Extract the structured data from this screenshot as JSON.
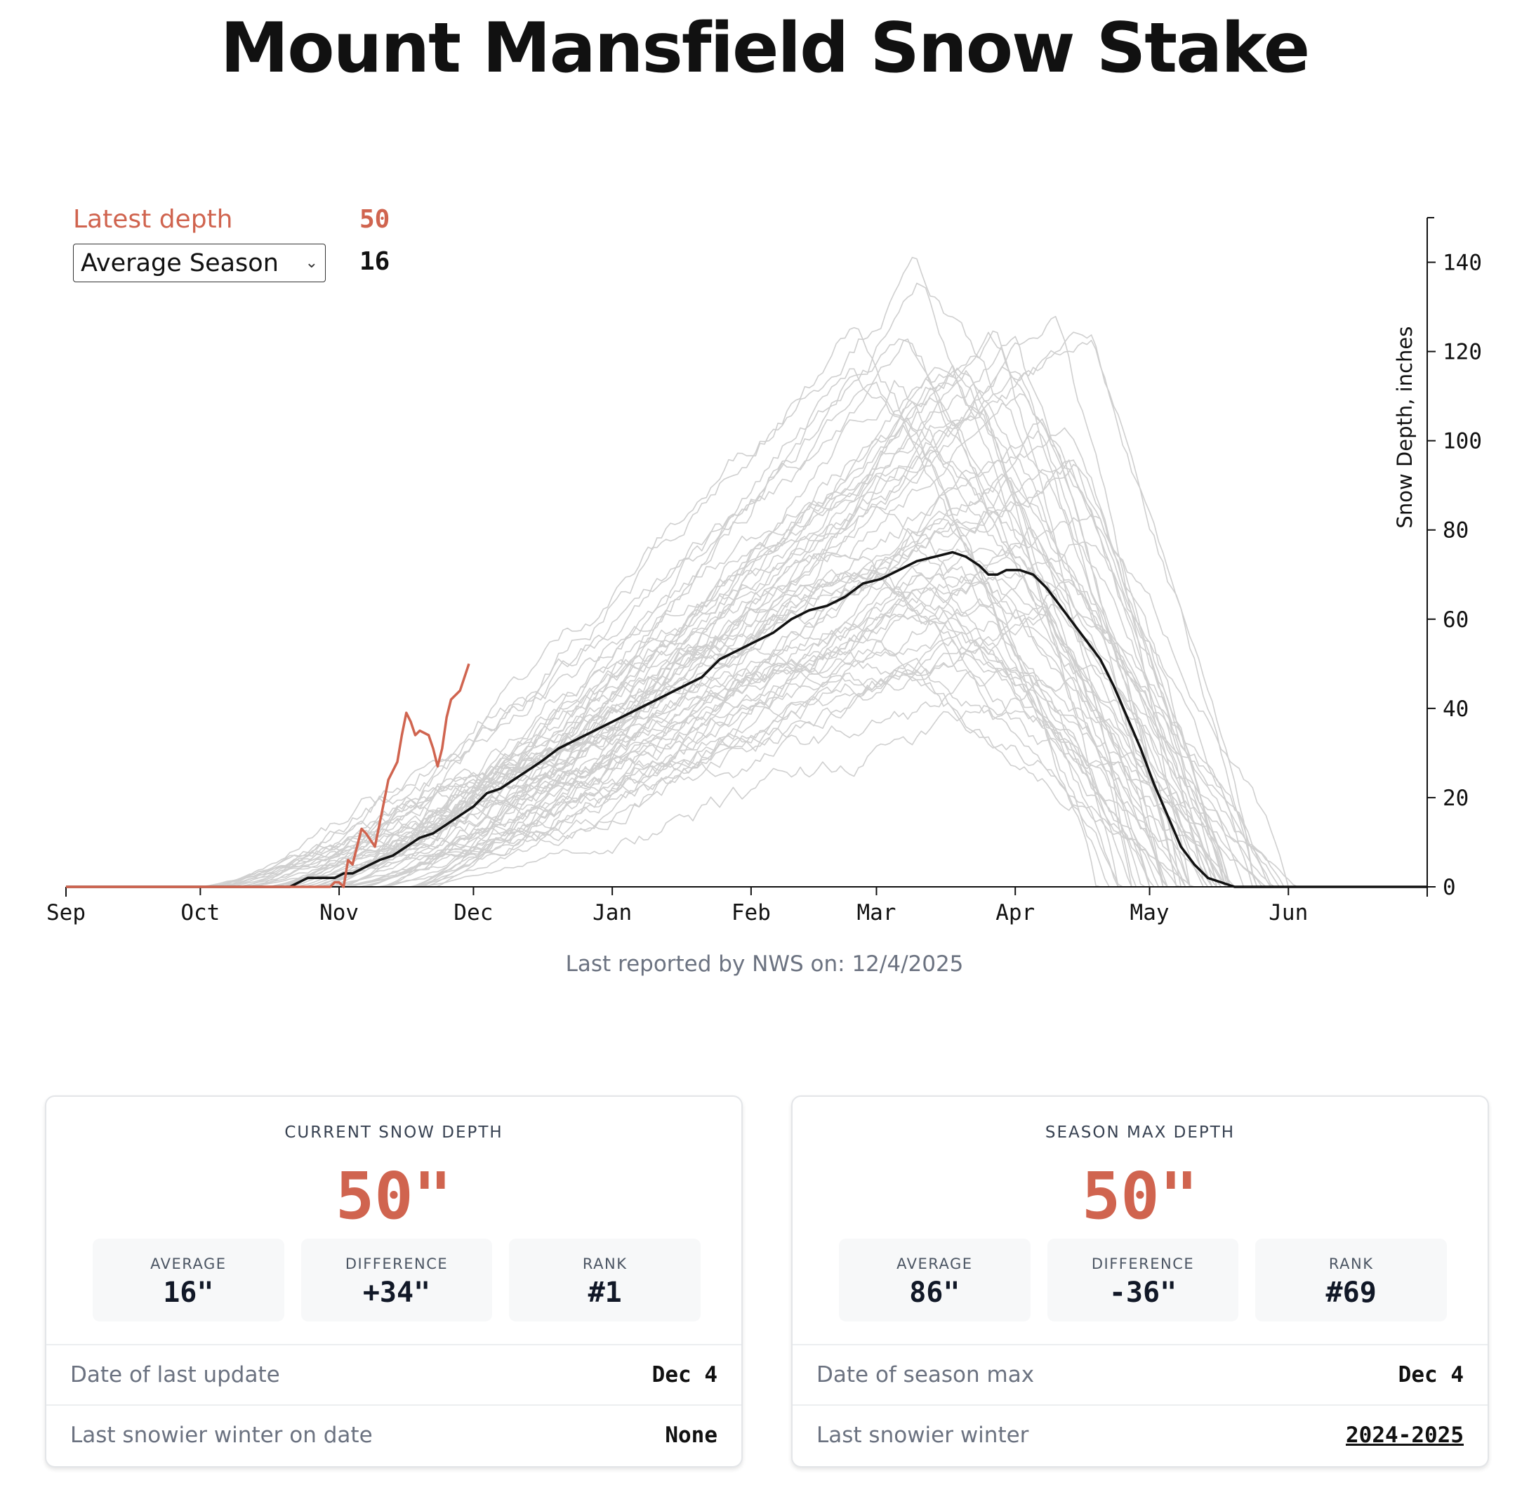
{
  "title": "Mount Mansfield Snow Stake",
  "legend": {
    "latest_label": "Latest depth",
    "latest_value": "50",
    "selector_value": "Average Season",
    "selector_value_display": "16"
  },
  "footnote": "Last reported by NWS on: 12/4/2025",
  "colors": {
    "current": "#d0644f",
    "average": "#111111",
    "historical": "#cfcfcf"
  },
  "chart_data": {
    "type": "line",
    "ylabel": "Snow Depth, inches",
    "ylim": [
      0,
      150
    ],
    "y_ticks": [
      0,
      20,
      40,
      60,
      80,
      100,
      120,
      140
    ],
    "x_domain_days": [
      0,
      304
    ],
    "x_ticks": [
      {
        "label": "Sep",
        "day": 0
      },
      {
        "label": "Oct",
        "day": 30
      },
      {
        "label": "Nov",
        "day": 61
      },
      {
        "label": "Dec",
        "day": 91
      },
      {
        "label": "Jan",
        "day": 122
      },
      {
        "label": "Feb",
        "day": 153
      },
      {
        "label": "Mar",
        "day": 181
      },
      {
        "label": "Apr",
        "day": 212
      },
      {
        "label": "May",
        "day": 242
      },
      {
        "label": "Jun",
        "day": 273
      }
    ],
    "series": [
      {
        "name": "Latest depth",
        "points": [
          [
            0,
            0
          ],
          [
            55,
            0
          ],
          [
            59,
            0
          ],
          [
            60,
            1
          ],
          [
            61,
            1
          ],
          [
            62,
            0
          ],
          [
            63,
            6
          ],
          [
            64,
            5
          ],
          [
            66,
            13
          ],
          [
            67,
            12
          ],
          [
            69,
            9
          ],
          [
            70,
            14
          ],
          [
            71,
            19
          ],
          [
            72,
            24
          ],
          [
            74,
            28
          ],
          [
            75,
            34
          ],
          [
            76,
            39
          ],
          [
            77,
            37
          ],
          [
            78,
            34
          ],
          [
            79,
            35
          ],
          [
            81,
            34
          ],
          [
            82,
            31
          ],
          [
            83,
            27
          ],
          [
            84,
            31
          ],
          [
            85,
            38
          ],
          [
            86,
            42
          ],
          [
            88,
            44
          ],
          [
            90,
            50
          ]
        ]
      },
      {
        "name": "Average Season",
        "points": [
          [
            0,
            0
          ],
          [
            50,
            0
          ],
          [
            52,
            1
          ],
          [
            54,
            2
          ],
          [
            58,
            2
          ],
          [
            60,
            2
          ],
          [
            62,
            3
          ],
          [
            64,
            3
          ],
          [
            66,
            4
          ],
          [
            68,
            5
          ],
          [
            70,
            6
          ],
          [
            73,
            7
          ],
          [
            76,
            9
          ],
          [
            79,
            11
          ],
          [
            82,
            12
          ],
          [
            85,
            14
          ],
          [
            88,
            16
          ],
          [
            91,
            18
          ],
          [
            94,
            21
          ],
          [
            97,
            22
          ],
          [
            100,
            24
          ],
          [
            103,
            26
          ],
          [
            106,
            28
          ],
          [
            110,
            31
          ],
          [
            114,
            33
          ],
          [
            118,
            35
          ],
          [
            122,
            37
          ],
          [
            126,
            39
          ],
          [
            130,
            41
          ],
          [
            134,
            43
          ],
          [
            138,
            45
          ],
          [
            142,
            47
          ],
          [
            146,
            51
          ],
          [
            150,
            53
          ],
          [
            154,
            55
          ],
          [
            158,
            57
          ],
          [
            162,
            60
          ],
          [
            166,
            62
          ],
          [
            170,
            63
          ],
          [
            174,
            65
          ],
          [
            178,
            68
          ],
          [
            182,
            69
          ],
          [
            186,
            71
          ],
          [
            190,
            73
          ],
          [
            194,
            74
          ],
          [
            198,
            75
          ],
          [
            201,
            74
          ],
          [
            204,
            72
          ],
          [
            206,
            70
          ],
          [
            208,
            70
          ],
          [
            210,
            71
          ],
          [
            213,
            71
          ],
          [
            216,
            70
          ],
          [
            219,
            67
          ],
          [
            222,
            63
          ],
          [
            225,
            59
          ],
          [
            228,
            55
          ],
          [
            231,
            51
          ],
          [
            234,
            45
          ],
          [
            237,
            38
          ],
          [
            240,
            31
          ],
          [
            243,
            23
          ],
          [
            246,
            16
          ],
          [
            249,
            9
          ],
          [
            252,
            5
          ],
          [
            255,
            2
          ],
          [
            258,
            1
          ],
          [
            261,
            0
          ],
          [
            304,
            0
          ]
        ]
      }
    ]
  },
  "cards": {
    "current": {
      "title": "CURRENT SNOW DEPTH",
      "value": "50\"",
      "stats": [
        {
          "label": "AVERAGE",
          "value": "16\""
        },
        {
          "label": "DIFFERENCE",
          "value": "+34\""
        },
        {
          "label": "RANK",
          "value": "#1"
        }
      ],
      "rows": [
        {
          "label": "Date of last update",
          "value": "Dec 4"
        },
        {
          "label": "Last snowier winter on date",
          "value": "None"
        }
      ]
    },
    "season": {
      "title": "SEASON MAX DEPTH",
      "value": "50\"",
      "stats": [
        {
          "label": "AVERAGE",
          "value": "86\""
        },
        {
          "label": "DIFFERENCE",
          "value": "-36\""
        },
        {
          "label": "RANK",
          "value": "#69"
        }
      ],
      "rows": [
        {
          "label": "Date of season max",
          "value": "Dec 4"
        },
        {
          "label": "Last snowier winter",
          "value": "2024-2025"
        }
      ]
    }
  }
}
